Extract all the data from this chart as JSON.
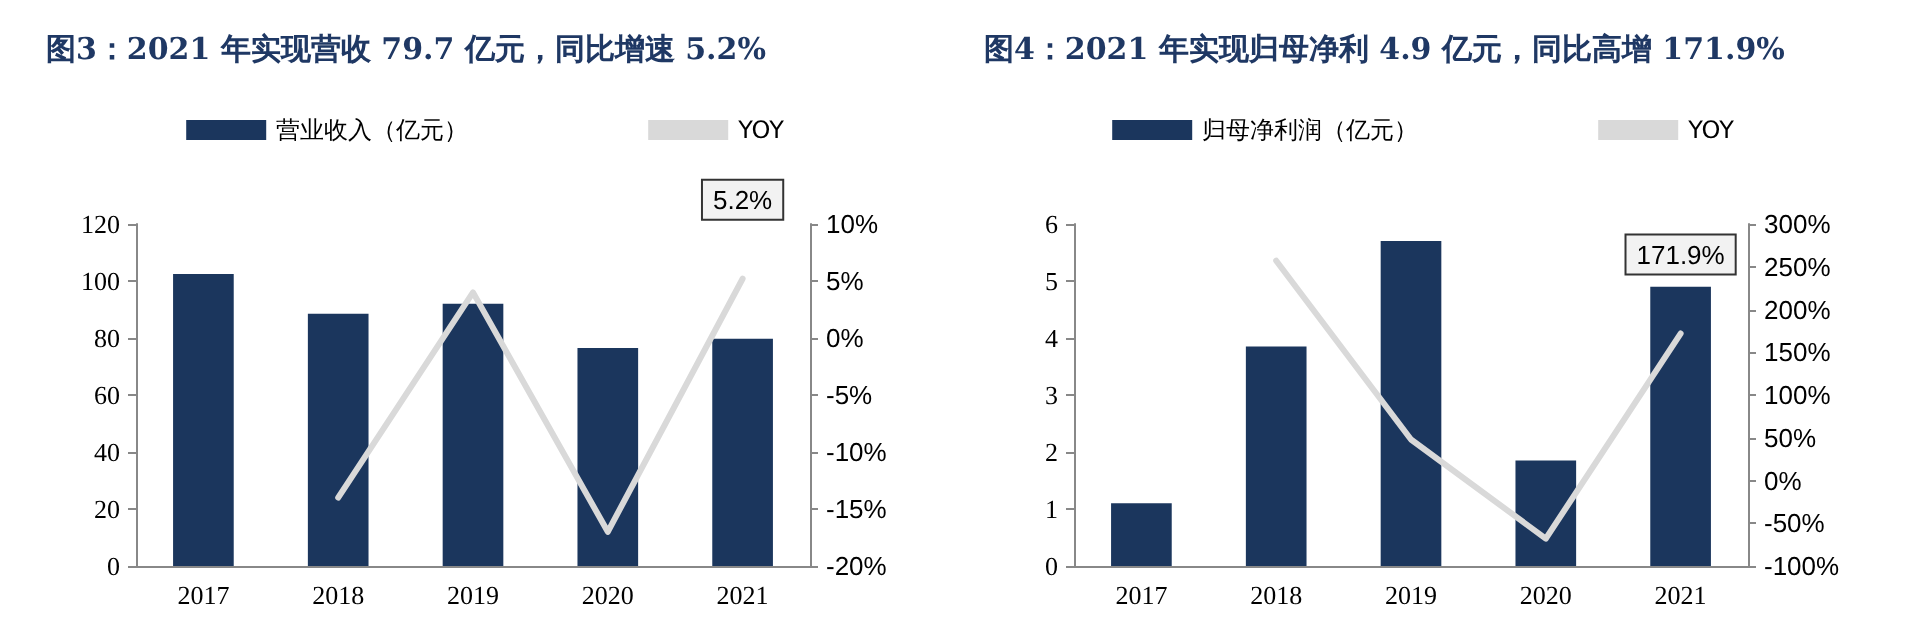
{
  "chart_data": [
    {
      "type": "bar",
      "title": "图3：2021 年实现营收 79.7 亿元，同比增速 5.2%",
      "categories": [
        "2017",
        "2018",
        "2019",
        "2020",
        "2021"
      ],
      "series": [
        {
          "name": "营业收入（亿元）",
          "color": "#1b365d",
          "values": [
            102.5,
            88.5,
            92,
            76.5,
            79.7
          ]
        },
        {
          "name": "YOY",
          "type": "line",
          "axis": "y2",
          "color": "#d9d9d9",
          "values": [
            null,
            -14,
            4,
            -17,
            5.2
          ],
          "value_labels": [
            null,
            null,
            null,
            null,
            "5.2%"
          ]
        }
      ],
      "ylim": [
        0,
        120
      ],
      "yticks": [
        0,
        20,
        40,
        60,
        80,
        100,
        120
      ],
      "y2lim": [
        -20,
        10
      ],
      "y2ticks": [
        {
          "value": -20,
          "label": "-20%"
        },
        {
          "value": -15,
          "label": "-15%"
        },
        {
          "value": -10,
          "label": "-10%"
        },
        {
          "value": -5,
          "label": "-5%"
        },
        {
          "value": 0,
          "label": "0%"
        },
        {
          "value": 5,
          "label": "5%"
        },
        {
          "value": 10,
          "label": "10%"
        }
      ],
      "legend": "top",
      "grid": false,
      "marker": "none"
    },
    {
      "type": "bar",
      "title": "图4：2021 年实现归母净利 4.9 亿元，同比高增 171.9%",
      "categories": [
        "2017",
        "2018",
        "2019",
        "2020",
        "2021"
      ],
      "series": [
        {
          "name": "归母净利润（亿元）",
          "color": "#1b365d",
          "values": [
            1.1,
            3.85,
            5.7,
            1.85,
            4.9
          ]
        },
        {
          "name": "YOY",
          "type": "line",
          "axis": "y2",
          "color": "#d9d9d9",
          "values": [
            null,
            257,
            48,
            -68,
            171.9
          ],
          "value_labels": [
            null,
            null,
            null,
            null,
            "171.9%"
          ]
        }
      ],
      "ylim": [
        0,
        6
      ],
      "yticks": [
        0,
        1,
        2,
        3,
        4,
        5,
        6
      ],
      "y2lim": [
        -100,
        300
      ],
      "y2ticks": [
        {
          "value": -100,
          "label": "-100%"
        },
        {
          "value": -50,
          "label": "-50%"
        },
        {
          "value": 0,
          "label": "0%"
        },
        {
          "value": 50,
          "label": "50%"
        },
        {
          "value": 100,
          "label": "100%"
        },
        {
          "value": 150,
          "label": "150%"
        },
        {
          "value": 200,
          "label": "200%"
        },
        {
          "value": 250,
          "label": "250%"
        },
        {
          "value": 300,
          "label": "300%"
        }
      ],
      "legend": "top",
      "grid": false,
      "marker": "none"
    }
  ]
}
